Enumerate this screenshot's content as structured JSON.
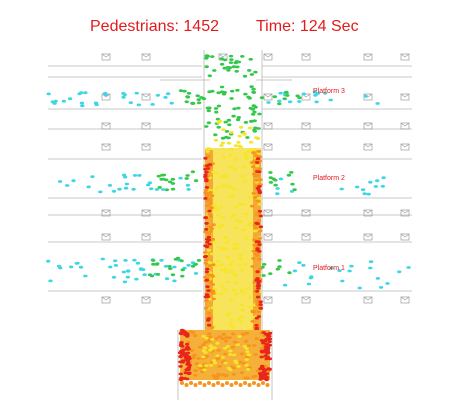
{
  "hud": {
    "pedestrians_label": "Pedestrians:",
    "pedestrians_count": "1452",
    "time_label": "Time:",
    "time_value": "124 Sec"
  },
  "platforms": [
    {
      "label": "Platform 3"
    },
    {
      "label": "Platform 2"
    },
    {
      "label": "Platform 1"
    }
  ],
  "colors": {
    "text_red": "#e31a1c",
    "wall_gray": "#b8b8b8",
    "ped_cyan": "#3dd6e6",
    "ped_green": "#33c84a",
    "ped_yellow": "#f5e62a",
    "ped_orange": "#f7941d",
    "ped_red": "#e8261c"
  },
  "icons": [
    "train-door-icon"
  ]
}
